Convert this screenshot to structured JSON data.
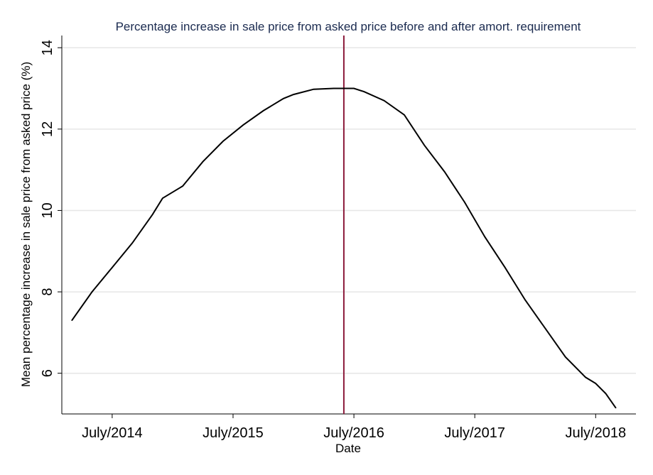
{
  "chart_data": {
    "type": "line",
    "title": "Percentage increase in sale price from asked price before and after amort. requirement",
    "xlabel": "Date",
    "ylabel": "Mean percentage increase in sale price from asked price (%)",
    "x_ticks": [
      "July/2014",
      "July/2015",
      "July/2016",
      "July/2017",
      "July/2018"
    ],
    "y_ticks": [
      6,
      8,
      10,
      12,
      14
    ],
    "xlim": [
      "2014-02",
      "2018-11"
    ],
    "ylim": [
      5.0,
      14.3
    ],
    "grid": "horizontal",
    "vline": {
      "x": "2016-06",
      "color": "#8b1a3a"
    },
    "line_color": "#000000",
    "series": [
      {
        "x": [
          "2014-03",
          "2014-05",
          "2014-07",
          "2014-09",
          "2014-11",
          "2014-12",
          "2015-02",
          "2015-04",
          "2015-06",
          "2015-08",
          "2015-10",
          "2015-12",
          "2016-01",
          "2016-03",
          "2016-05",
          "2016-07",
          "2016-08",
          "2016-10",
          "2016-12",
          "2017-02",
          "2017-04",
          "2017-06",
          "2017-08",
          "2017-10",
          "2017-12",
          "2018-02",
          "2018-04",
          "2018-06",
          "2018-07",
          "2018-08",
          "2018-09"
        ],
        "values": [
          7.3,
          8.0,
          8.6,
          9.2,
          9.9,
          10.3,
          10.6,
          11.2,
          11.7,
          12.1,
          12.45,
          12.75,
          12.85,
          12.98,
          13.0,
          13.0,
          12.92,
          12.7,
          12.35,
          11.6,
          10.95,
          10.2,
          9.35,
          8.6,
          7.8,
          7.1,
          6.4,
          5.9,
          5.75,
          5.5,
          5.15
        ]
      }
    ]
  }
}
